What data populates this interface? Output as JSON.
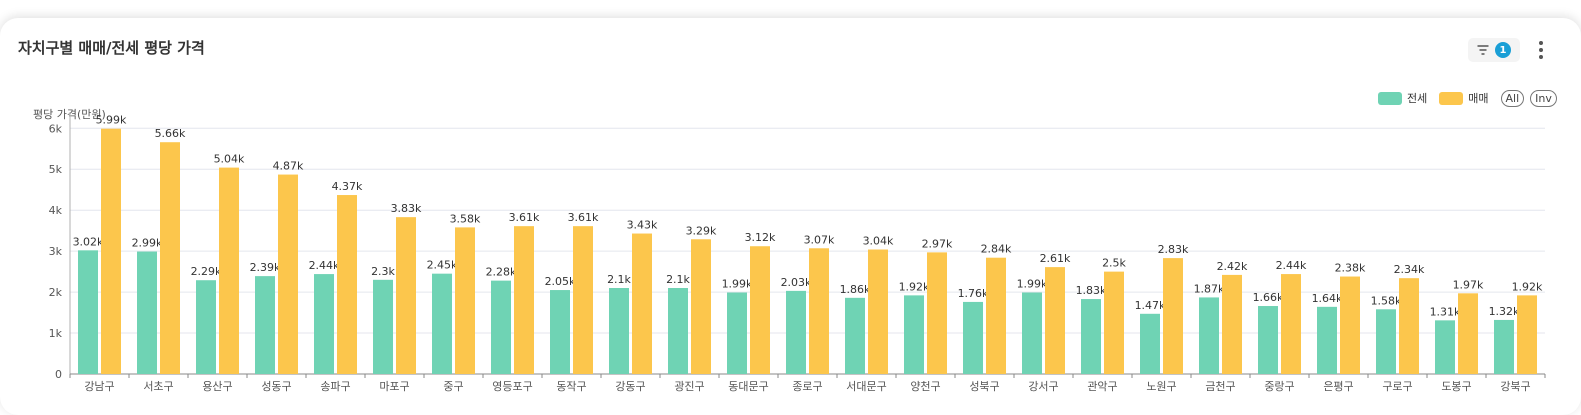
{
  "card": {
    "title": "자치구별 매매/전세 평당 가격",
    "filter_count": "1"
  },
  "legend": {
    "items": [
      {
        "label": "전세",
        "color": "#6fd3b4"
      },
      {
        "label": "매매",
        "color": "#fcc64c"
      }
    ],
    "all_label": "All",
    "inv_label": "Inv"
  },
  "chart_data": {
    "type": "bar",
    "ylabel": "평당 가격(만원)",
    "ylim": [
      0,
      6300
    ],
    "yticks": [
      {
        "value": 0,
        "label": "0"
      },
      {
        "value": 1000,
        "label": "1k"
      },
      {
        "value": 2000,
        "label": "2k"
      },
      {
        "value": 3000,
        "label": "3k"
      },
      {
        "value": 4000,
        "label": "4k"
      },
      {
        "value": 5000,
        "label": "5k"
      },
      {
        "value": 6000,
        "label": "6k"
      }
    ],
    "grid": true,
    "legend_position": "top-right",
    "categories": [
      "강남구",
      "서초구",
      "용산구",
      "성동구",
      "송파구",
      "마포구",
      "중구",
      "영등포구",
      "동작구",
      "강동구",
      "광진구",
      "동대문구",
      "종로구",
      "서대문구",
      "양천구",
      "성북구",
      "강서구",
      "관악구",
      "노원구",
      "금천구",
      "중랑구",
      "은평구",
      "구로구",
      "도봉구",
      "강북구"
    ],
    "series": [
      {
        "name": "전세",
        "color": "#6fd3b4",
        "values": [
          3020,
          2990,
          2290,
          2390,
          2440,
          2300,
          2450,
          2280,
          2050,
          2100,
          2100,
          1990,
          2030,
          1860,
          1920,
          1760,
          1990,
          1830,
          1470,
          1870,
          1660,
          1640,
          1580,
          1310,
          1320
        ],
        "labels": [
          "3.02k",
          "2.99k",
          "2.29k",
          "2.39k",
          "2.44k",
          "2.3k",
          "2.45k",
          "2.28k",
          "2.05k",
          "2.1k",
          "2.1k",
          "1.99k",
          "2.03k",
          "1.86k",
          "1.92k",
          "1.76k",
          "1.99k",
          "1.83k",
          "1.47k",
          "1.87k",
          "1.66k",
          "1.64k",
          "1.58k",
          "1.31k",
          "1.32k"
        ]
      },
      {
        "name": "매매",
        "color": "#fcc64c",
        "values": [
          5990,
          5660,
          5040,
          4870,
          4370,
          3830,
          3580,
          3610,
          3610,
          3430,
          3290,
          3120,
          3070,
          3040,
          2970,
          2840,
          2610,
          2500,
          2830,
          2420,
          2440,
          2380,
          2340,
          1970,
          1920
        ],
        "labels": [
          "5.99k",
          "5.66k",
          "5.04k",
          "4.87k",
          "4.37k",
          "3.83k",
          "3.58k",
          "3.61k",
          "3.61k",
          "3.43k",
          "3.29k",
          "3.12k",
          "3.07k",
          "3.04k",
          "2.97k",
          "2.84k",
          "2.61k",
          "2.5k",
          "2.83k",
          "2.42k",
          "2.44k",
          "2.38k",
          "2.34k",
          "1.97k",
          "1.92k"
        ]
      }
    ]
  }
}
